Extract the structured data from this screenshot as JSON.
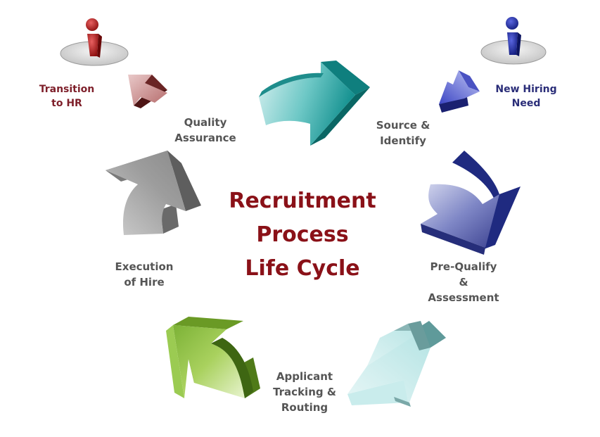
{
  "center_title": {
    "line1": "Recruitment",
    "line2": "Process",
    "line3": "Life Cycle"
  },
  "stages": {
    "source_identify": {
      "line1": "Source &",
      "line2": "Identify"
    },
    "pre_qualify": {
      "line1": "Pre-Qualify",
      "line2": "&",
      "line3": "Assessment"
    },
    "applicant_tracking": {
      "line1": "Applicant",
      "line2": "Tracking &",
      "line3": "Routing"
    },
    "execution_of_hire": {
      "line1": "Execution",
      "line2": "of Hire"
    },
    "quality_assurance": {
      "line1": "Quality",
      "line2": "Assurance"
    }
  },
  "entry": {
    "line1": "New Hiring",
    "line2": "Need"
  },
  "exit": {
    "line1": "Transition",
    "line2": "to HR"
  },
  "colors": {
    "title": "#8a1118",
    "stage_label": "#555555",
    "exit_label": "#7e1f2a",
    "entry_label": "#2a2d78",
    "arrow_teal": "#1a9a9a",
    "arrow_navy": "#353a8a",
    "arrow_light_teal": "#a7dede",
    "arrow_green": "#8ec045",
    "arrow_grey": "#8c8c8c",
    "arrow_exit": "#a85a5a",
    "arrow_entry": "#4a54c8"
  },
  "icons": {
    "exit_person": "info-person-icon",
    "entry_person": "info-person-icon"
  }
}
